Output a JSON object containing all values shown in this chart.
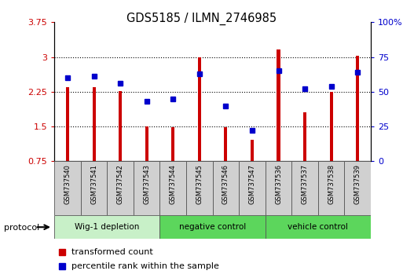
{
  "title": "GDS5185 / ILMN_2746985",
  "samples": [
    "GSM737540",
    "GSM737541",
    "GSM737542",
    "GSM737543",
    "GSM737544",
    "GSM737545",
    "GSM737546",
    "GSM737547",
    "GSM737536",
    "GSM737537",
    "GSM737538",
    "GSM737539"
  ],
  "red_values": [
    2.35,
    2.35,
    2.26,
    1.5,
    1.48,
    2.99,
    1.48,
    1.22,
    3.16,
    1.8,
    2.25,
    3.02
  ],
  "blue_values": [
    60,
    61,
    56,
    43,
    45,
    63,
    40,
    22,
    65,
    52,
    54,
    64
  ],
  "ylim_left": [
    0.75,
    3.75
  ],
  "ylim_right": [
    0,
    100
  ],
  "yticks_left": [
    0.75,
    1.5,
    2.25,
    3.0,
    3.75
  ],
  "ytick_labels_left": [
    "0.75",
    "1.5",
    "2.25",
    "3",
    "3.75"
  ],
  "yticks_right": [
    0,
    25,
    50,
    75,
    100
  ],
  "ytick_labels_right": [
    "0",
    "25",
    "50",
    "75",
    "100%"
  ],
  "bar_color": "#cc0000",
  "dot_color": "#0000cc",
  "bg_color": "#ffffff",
  "left_tick_color": "#cc0000",
  "right_tick_color": "#0000cc",
  "legend_red_label": "transformed count",
  "legend_blue_label": "percentile rank within the sample",
  "protocol_label": "protocol",
  "bar_width": 0.12,
  "base_value": 0.75,
  "group_labels": [
    "Wig-1 depletion",
    "negative control",
    "vehicle control"
  ],
  "group_ranges": [
    [
      0,
      3
    ],
    [
      4,
      7
    ],
    [
      8,
      11
    ]
  ],
  "group_colors": [
    "#c8f0c8",
    "#5cd65c",
    "#5cd65c"
  ],
  "cell_color": "#d0d0d0",
  "grid_dotted_at": [
    1.5,
    2.25,
    3.0
  ]
}
